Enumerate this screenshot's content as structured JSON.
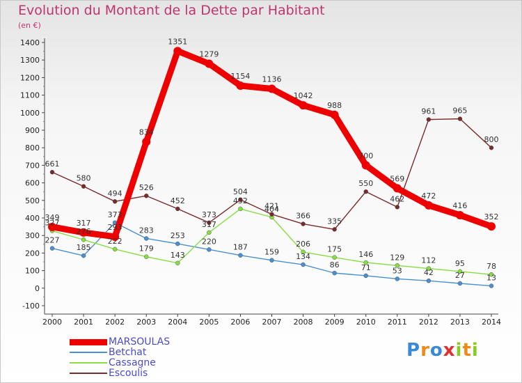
{
  "chart_data": {
    "type": "line",
    "title": "Evolution du Montant de la Dette par Habitant",
    "unit_label": "(en €)",
    "x": [
      "2000",
      "2001",
      "2002",
      "2003",
      "2004",
      "2005",
      "2006",
      "2007",
      "2008",
      "2009",
      "2010",
      "2011",
      "2012",
      "2013",
      "2014"
    ],
    "ylim": [
      -100,
      1400
    ],
    "yticks": [
      -100,
      0,
      100,
      200,
      300,
      400,
      500,
      600,
      700,
      800,
      900,
      1000,
      1100,
      1200,
      1300,
      1400
    ],
    "grid": false,
    "legend_position": "bottom-left",
    "series": [
      {
        "name": "MARSOULAS",
        "color": "#ee0000",
        "values": [
          349,
          317,
          293,
          834,
          1351,
          1279,
          1154,
          1136,
          1042,
          988,
          700,
          569,
          472,
          416,
          352
        ]
      },
      {
        "name": "Betchat",
        "color": "#4a90d0",
        "values": [
          227,
          185,
          373,
          283,
          253,
          220,
          187,
          159,
          134,
          86,
          71,
          53,
          42,
          27,
          13
        ]
      },
      {
        "name": "Cassagne",
        "color": "#88dd44",
        "values": [
          327,
          276,
          222,
          179,
          143,
          317,
          452,
          404,
          206,
          175,
          146,
          129,
          112,
          95,
          78
        ]
      },
      {
        "name": "Escoulis",
        "color": "#7a2a2a",
        "values": [
          661,
          580,
          494,
          526,
          452,
          373,
          504,
          421,
          366,
          335,
          550,
          462,
          961,
          965,
          800
        ]
      }
    ]
  },
  "logo": {
    "letters": [
      "P",
      "r",
      "o",
      "x",
      "i",
      "t",
      "i"
    ]
  }
}
